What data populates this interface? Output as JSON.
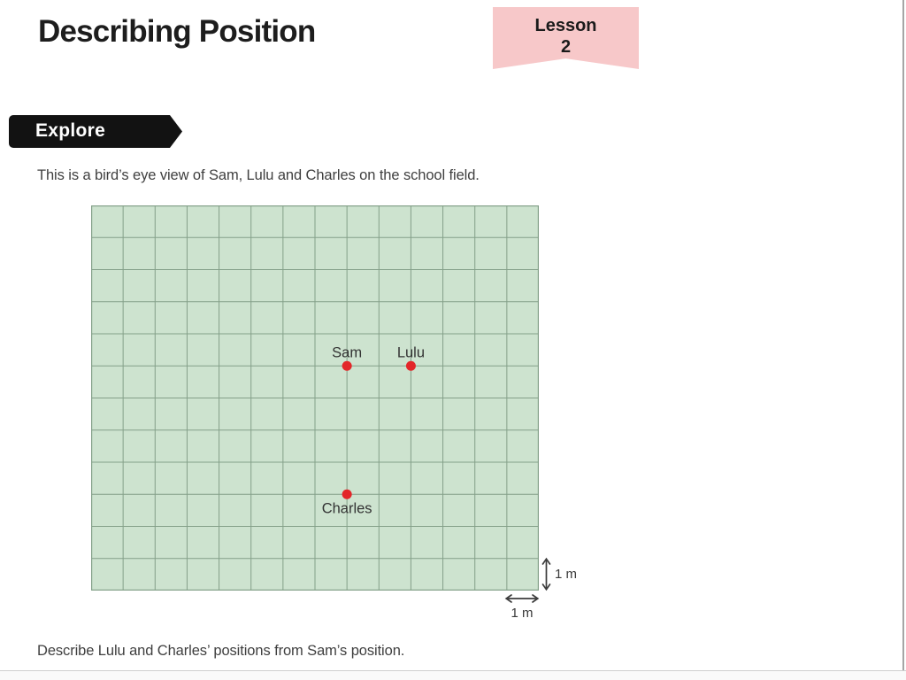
{
  "header": {
    "title": "Describing Position",
    "lesson_badge": {
      "label": "Lesson",
      "number": "2"
    }
  },
  "explore_banner": {
    "label": "Explore"
  },
  "intro_text": "This is a bird’s eye view of Sam, Lulu and Charles on the school field.",
  "question_text": "Describe Lulu and Charles’ positions from Sam’s position.",
  "field_diagram": {
    "grid": {
      "columns": 14,
      "rows": 12,
      "cell_represents": "1 m",
      "fill_color": "#cde3cf",
      "line_color": "#84a089"
    },
    "points": [
      {
        "name": "Sam",
        "col": 8,
        "row": 5,
        "label_placement": "above"
      },
      {
        "name": "Lulu",
        "col": 10,
        "row": 5,
        "label_placement": "above"
      },
      {
        "name": "Charles",
        "col": 8,
        "row": 9,
        "label_placement": "below"
      }
    ],
    "point_color": "#e32629",
    "vertical_scale_label": "1 m",
    "horizontal_scale_label": "1 m"
  },
  "colors": {
    "lesson_badge_bg": "#f7c8c9",
    "explore_banner_bg": "#121212",
    "explore_banner_text": "#ffffff",
    "title_text": "#1d1d1d",
    "body_text": "#3f3f3f"
  }
}
